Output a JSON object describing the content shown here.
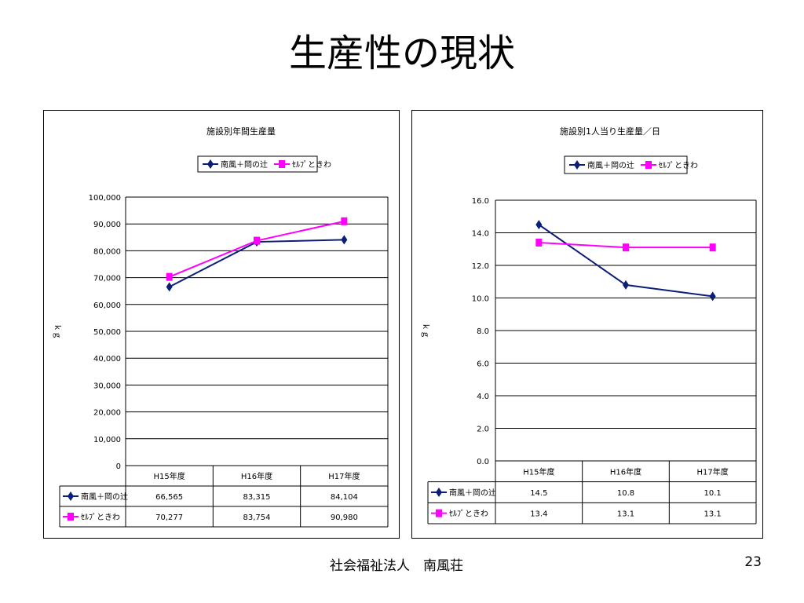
{
  "slide": {
    "title": "生産性の現状",
    "footer": "社会福祉法人　南風荘",
    "page_number": "23"
  },
  "colors": {
    "series1": "#0b1e78",
    "series2": "#ff00ff",
    "grid": "#000000"
  },
  "chart_data": [
    {
      "type": "line",
      "title": "施設別年間生産量",
      "ylabel": "ｋｇ",
      "categories": [
        "H15年度",
        "H16年度",
        "H17年度"
      ],
      "ylim": [
        0,
        100000
      ],
      "yticks": [
        "0",
        "10,000",
        "20,000",
        "30,000",
        "40,000",
        "50,000",
        "60,000",
        "70,000",
        "80,000",
        "90,000",
        "100,000"
      ],
      "legend_position": "top",
      "grid": true,
      "series": [
        {
          "name": "南風＋岡の辻",
          "values": [
            66565,
            83315,
            84104
          ],
          "labels": [
            "66,565",
            "83,315",
            "84,104"
          ],
          "marker": "diamond"
        },
        {
          "name": "ｾﾙﾌﾟときわ",
          "values": [
            70277,
            83754,
            90980
          ],
          "labels": [
            "70,277",
            "83,754",
            "90,980"
          ],
          "marker": "square"
        }
      ]
    },
    {
      "type": "line",
      "title": "施設別1人当り生産量／日",
      "ylabel": "ｋｇ",
      "categories": [
        "H15年度",
        "H16年度",
        "H17年度"
      ],
      "ylim": [
        0,
        16
      ],
      "yticks": [
        "0.0",
        "2.0",
        "4.0",
        "6.0",
        "8.0",
        "10.0",
        "12.0",
        "14.0",
        "16.0"
      ],
      "legend_position": "top",
      "grid": true,
      "series": [
        {
          "name": "南風＋岡の辻",
          "values": [
            14.5,
            10.8,
            10.1
          ],
          "labels": [
            "14.5",
            "10.8",
            "10.1"
          ],
          "marker": "diamond"
        },
        {
          "name": "ｾﾙﾌﾟときわ",
          "values": [
            13.4,
            13.1,
            13.1
          ],
          "labels": [
            "13.4",
            "13.1",
            "13.1"
          ],
          "marker": "square"
        }
      ]
    }
  ]
}
